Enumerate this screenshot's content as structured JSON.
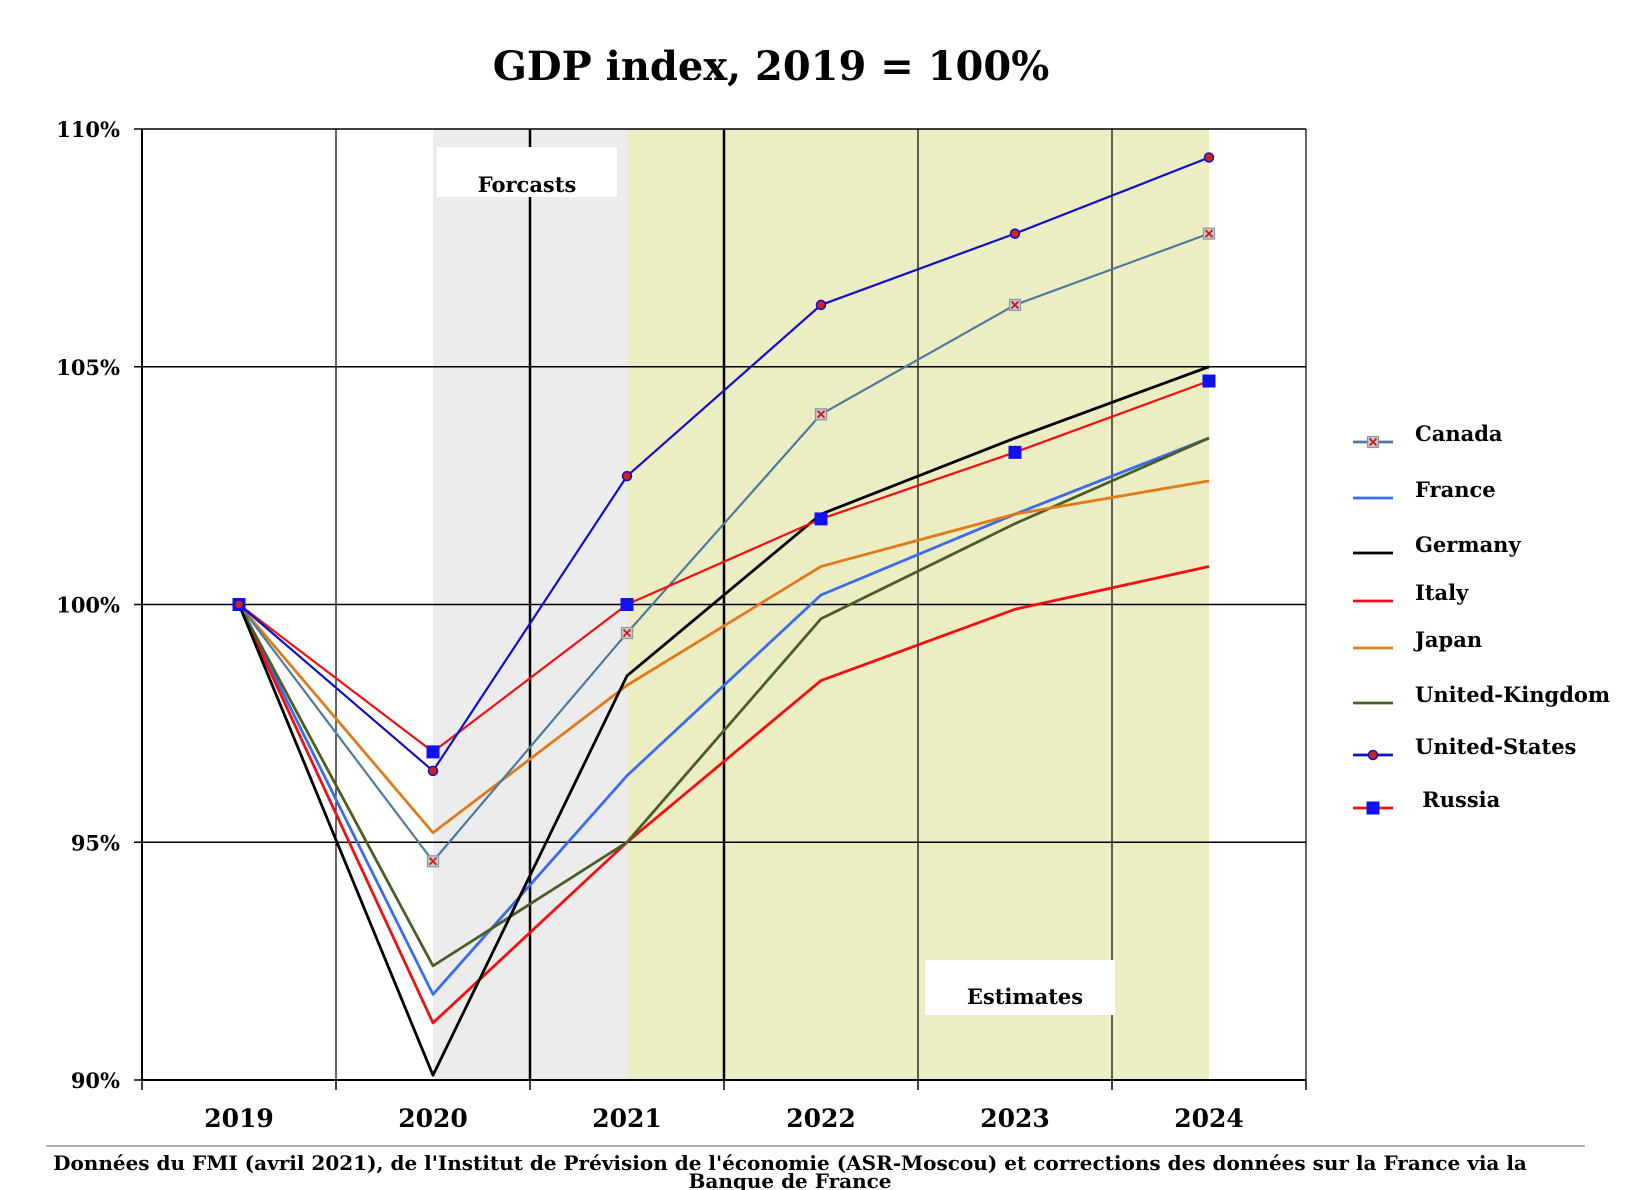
{
  "chart_data": {
    "type": "line",
    "title": "GDP index, 2019 = 100%",
    "categories": [
      "2019",
      "2020",
      "2021",
      "2022",
      "2023",
      "2024"
    ],
    "ylim": [
      90,
      110
    ],
    "yticks": [
      90,
      95,
      100,
      105,
      110
    ],
    "ytick_labels": [
      "90%",
      "95%",
      "100%",
      "105%",
      "110%"
    ],
    "grid": true,
    "legend_position": "right",
    "shaded_regions": [
      {
        "label": "Forcasts",
        "from": 1.5,
        "to": 2.5,
        "color": "#ececec"
      },
      {
        "label": "Estimates",
        "from": 2.5,
        "to": 5.5,
        "color": "#ededc3"
      }
    ],
    "series": [
      {
        "name": "Canada",
        "color": "#4f7a9e",
        "marker": "x-square",
        "values": [
          100,
          94.6,
          99.4,
          104.0,
          106.3,
          107.8
        ]
      },
      {
        "name": "France",
        "color": "#3a6cf0",
        "marker": "none",
        "values": [
          100,
          91.8,
          96.4,
          100.2,
          101.9,
          103.5
        ]
      },
      {
        "name": "Germany",
        "color": "#000000",
        "marker": "none",
        "values": [
          100,
          90.1,
          98.5,
          101.9,
          103.5,
          105.0
        ]
      },
      {
        "name": "Italy",
        "color": "#ee1111",
        "marker": "none",
        "values": [
          100,
          91.2,
          95.0,
          98.4,
          99.9,
          100.8
        ]
      },
      {
        "name": "Japan",
        "color": "#e07b1c",
        "marker": "none",
        "values": [
          100,
          95.2,
          98.3,
          100.8,
          101.9,
          102.6
        ]
      },
      {
        "name": "United-Kingdom",
        "color": "#4a5e26",
        "marker": "none",
        "values": [
          100,
          92.4,
          95.0,
          99.7,
          101.7,
          103.5
        ]
      },
      {
        "name": "United-States",
        "color": "#1010c8",
        "marker": "circle",
        "marker_color": "#d02020",
        "values": [
          100,
          96.5,
          102.7,
          106.3,
          107.8,
          109.4
        ]
      },
      {
        "name": " Russia",
        "color": "#ee1111",
        "marker": "square",
        "marker_color": "#1010f0",
        "values": [
          100,
          96.9,
          100.0,
          101.8,
          103.2,
          104.7
        ]
      }
    ],
    "source": "Données du FMI (avril 2021), de l'Institut de Prévision de  l'économie (ASR-Moscou) et corrections des données sur la France via la Banque de France"
  }
}
